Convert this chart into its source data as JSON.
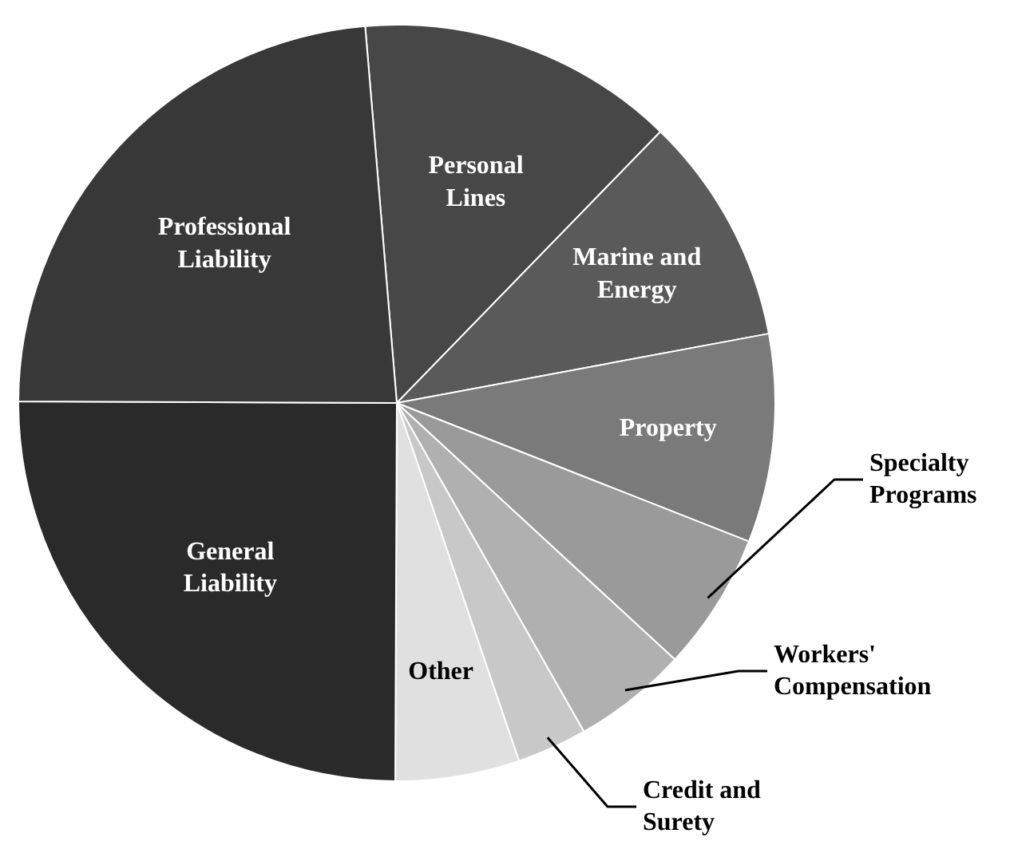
{
  "chart_data": {
    "type": "pie",
    "categories": [
      "Personal Lines",
      "Marine and Energy",
      "Property",
      "Specialty Programs",
      "Workers' Compensation",
      "Credit and Surety",
      "Other",
      "General Liability",
      "Professional Liability"
    ],
    "values": [
      13.6,
      9.8,
      8.9,
      5.9,
      4.9,
      3.0,
      5.3,
      25.0,
      23.6
    ],
    "colors": [
      "#474747",
      "#5a5a5a",
      "#7a7a7a",
      "#9a9a9a",
      "#b0b0b0",
      "#c8c8c8",
      "#e0e0e0",
      "#2a2a2a",
      "#383838"
    ]
  }
}
